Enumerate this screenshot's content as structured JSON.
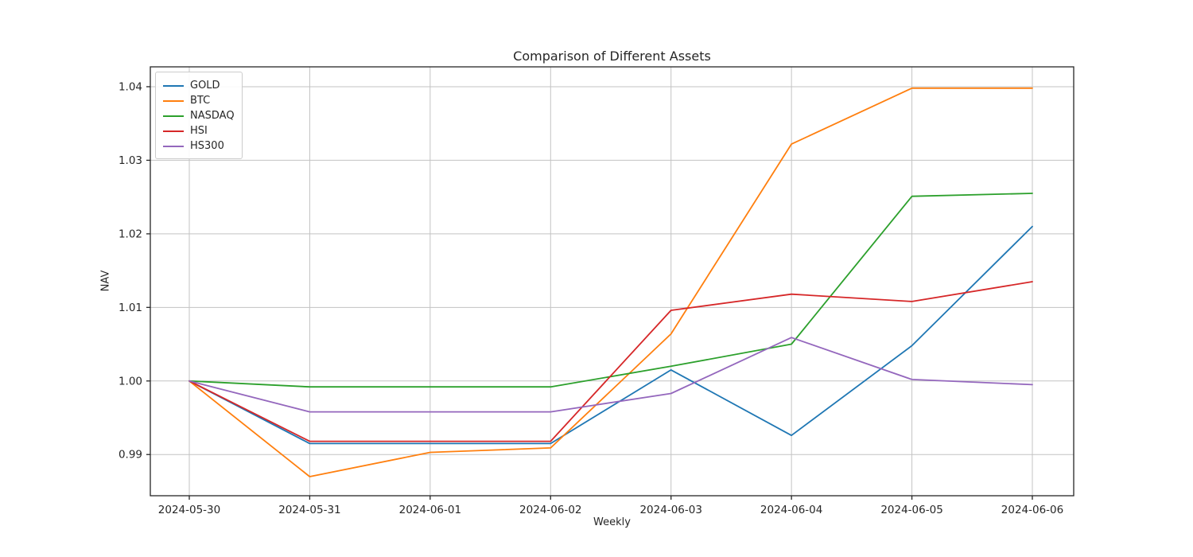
{
  "chart": {
    "title": "Comparison of Different Assets",
    "xlabel": "Weekly",
    "ylabel": "NAV"
  },
  "chart_data": {
    "type": "line",
    "title": "Comparison of Different Assets",
    "xlabel": "Weekly",
    "ylabel": "NAV",
    "categories": [
      "2024-05-30",
      "2024-05-31",
      "2024-06-01",
      "2024-06-02",
      "2024-06-03",
      "2024-06-04",
      "2024-06-05",
      "2024-06-06"
    ],
    "series": [
      {
        "name": "GOLD",
        "color": "#1f77b4",
        "values": [
          1.0,
          0.9915,
          0.9915,
          0.9915,
          1.0015,
          0.9926,
          1.0048,
          1.021
        ]
      },
      {
        "name": "BTC",
        "color": "#ff7f0e",
        "values": [
          1.0,
          0.987,
          0.9903,
          0.9909,
          1.0064,
          1.0322,
          1.0398,
          1.0398
        ]
      },
      {
        "name": "NASDAQ",
        "color": "#2ca02c",
        "values": [
          1.0,
          0.9992,
          0.9992,
          0.9992,
          1.002,
          1.005,
          1.0251,
          1.0255
        ]
      },
      {
        "name": "HSI",
        "color": "#d62728",
        "values": [
          1.0,
          0.9918,
          0.9918,
          0.9918,
          1.0096,
          1.0118,
          1.0108,
          1.0135
        ]
      },
      {
        "name": "HS300",
        "color": "#9467bd",
        "values": [
          1.0,
          0.9958,
          0.9958,
          0.9958,
          0.9983,
          1.0059,
          1.0002,
          0.9995
        ]
      }
    ],
    "yticks": [
      0.99,
      1.0,
      1.01,
      1.02,
      1.03,
      1.04
    ],
    "ytick_labels": [
      "0.99",
      "1.00",
      "1.01",
      "1.02",
      "1.03",
      "1.04"
    ],
    "ylim": [
      0.9844,
      1.0427
    ],
    "grid": true,
    "legend_position": "upper left",
    "grid_color": "#c3c3c3",
    "spine_color": "#262626",
    "text_color": "#262626"
  }
}
